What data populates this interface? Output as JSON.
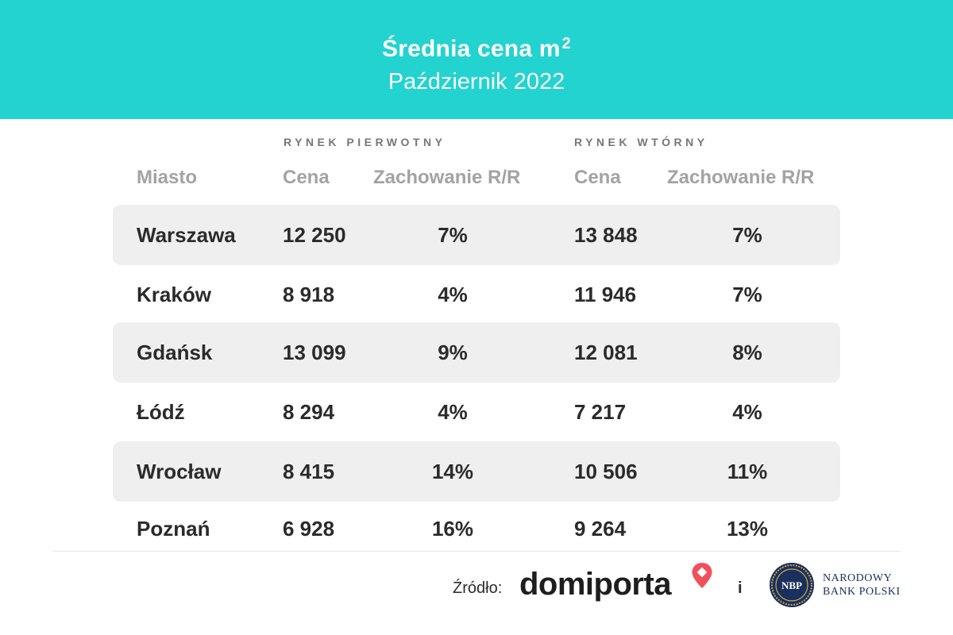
{
  "header": {
    "title": "Średnia cena m",
    "title_superscript": "2",
    "subtitle": "Październik 2022",
    "background_color": "#22d3d0"
  },
  "groups": {
    "primary": "RYNEK PIERWOTNY",
    "secondary": "RYNEK WTÓRNY"
  },
  "columns": {
    "city": "Miasto",
    "primary_price": "Cena",
    "primary_change": "Zachowanie R/R",
    "secondary_price": "Cena",
    "secondary_change": "Zachowanie R/R"
  },
  "rows": [
    {
      "city": "Warszawa",
      "primary_price": "12 250",
      "primary_change": "7%",
      "secondary_price": "13 848",
      "secondary_change": "7%"
    },
    {
      "city": "Kraków",
      "primary_price": "8 918",
      "primary_change": "4%",
      "secondary_price": "11 946",
      "secondary_change": "7%"
    },
    {
      "city": "Gdańsk",
      "primary_price": "13 099",
      "primary_change": "9%",
      "secondary_price": "12 081",
      "secondary_change": "8%"
    },
    {
      "city": "Łódź",
      "primary_price": "8 294",
      "primary_change": "4%",
      "secondary_price": "7 217",
      "secondary_change": "4%"
    },
    {
      "city": "Wrocław",
      "primary_price": "8 415",
      "primary_change": "14%",
      "secondary_price": "10 506",
      "secondary_change": "11%"
    },
    {
      "city": "Poznań",
      "primary_price": "6 928",
      "primary_change": "16%",
      "secondary_price": "9 264",
      "secondary_change": "13%"
    }
  ],
  "footer": {
    "source_label": "Źródło:",
    "domiporta_logo": "domiporta",
    "separator": "i",
    "nbp_emblem": "NBP",
    "nbp_name_line1": "NARODOWY",
    "nbp_name_line2": "BANK POLSKI",
    "pin_icon_color": "#f0505a"
  }
}
